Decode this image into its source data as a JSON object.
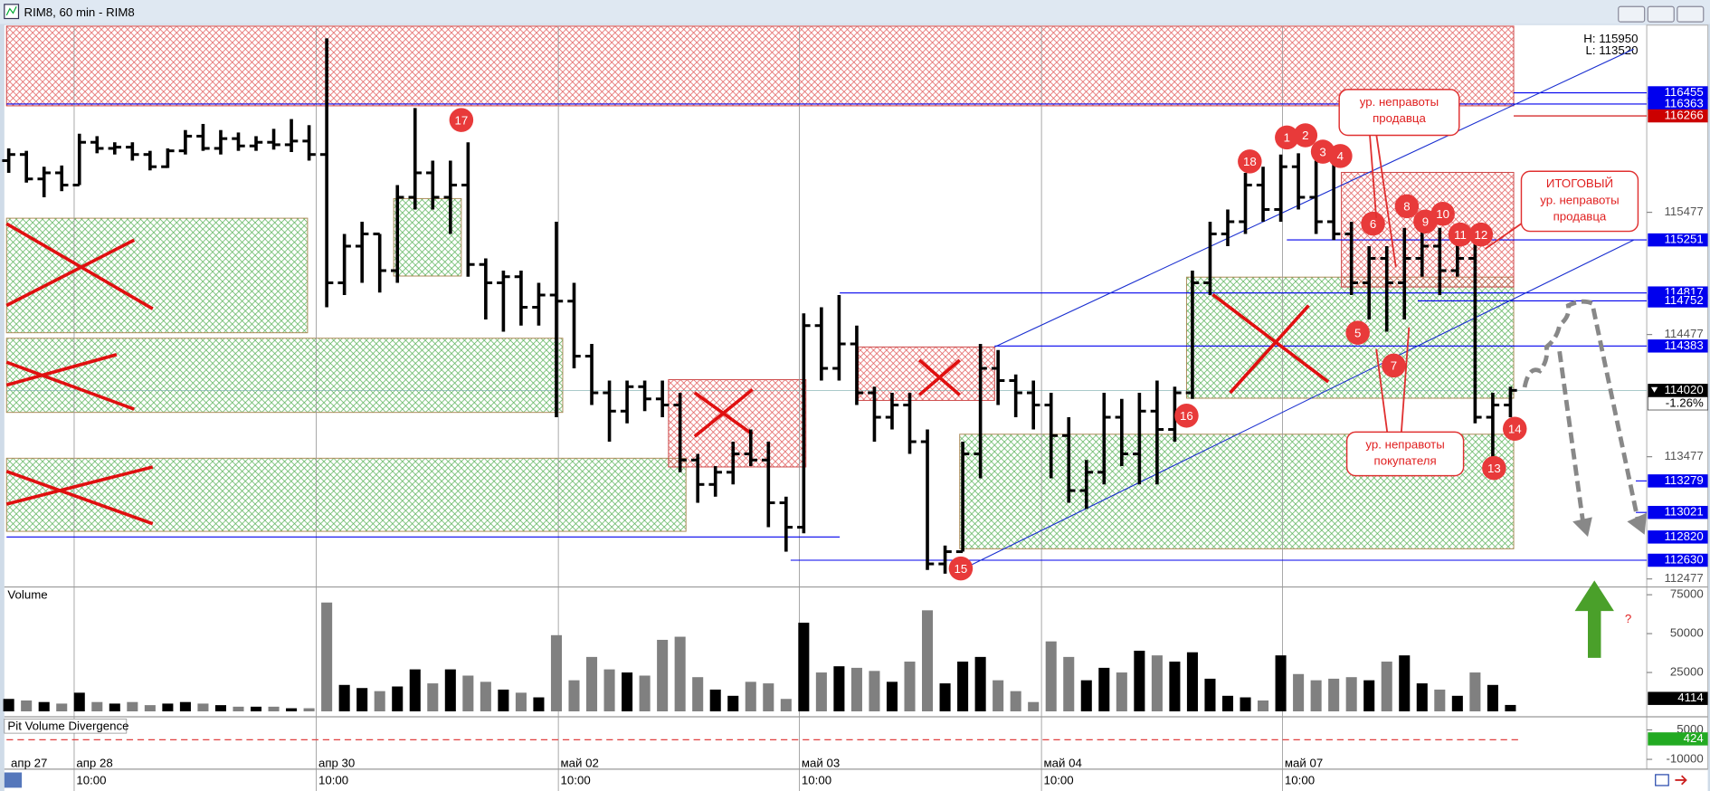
{
  "window_title": "RIM8, 60 min - RIM8",
  "chart_data": {
    "type": "ohlc",
    "bars": [
      [
        115900,
        116000,
        115800,
        115950
      ],
      [
        115950,
        115980,
        115720,
        115750
      ],
      [
        115750,
        115850,
        115600,
        115800
      ],
      [
        115800,
        115860,
        115650,
        115700
      ],
      [
        115700,
        116120,
        115700,
        116050
      ],
      [
        116050,
        116100,
        115960,
        116000
      ],
      [
        116000,
        116050,
        115950,
        116010
      ],
      [
        116010,
        116050,
        115900,
        115950
      ],
      [
        115950,
        115980,
        115820,
        115850
      ],
      [
        115850,
        116000,
        115840,
        115980
      ],
      [
        115980,
        116150,
        115950,
        116100
      ],
      [
        116100,
        116200,
        115980,
        116000
      ],
      [
        116000,
        116150,
        115950,
        116080
      ],
      [
        116080,
        116130,
        115980,
        116020
      ],
      [
        116020,
        116100,
        115980,
        116050
      ],
      [
        116050,
        116160,
        115990,
        116030
      ],
      [
        116030,
        116240,
        115970,
        116060
      ],
      [
        116060,
        116190,
        115900,
        115950
      ],
      [
        115950,
        116900,
        114700,
        114900
      ],
      [
        114900,
        115300,
        114800,
        115200
      ],
      [
        115200,
        115400,
        114900,
        115300
      ],
      [
        115300,
        115300,
        114820,
        115000
      ],
      [
        115000,
        115700,
        114900,
        115600
      ],
      [
        115600,
        116330,
        115500,
        115800
      ],
      [
        115800,
        115900,
        115500,
        115600
      ],
      [
        115600,
        115900,
        115300,
        115700
      ],
      [
        115700,
        116050,
        114950,
        115050
      ],
      [
        115050,
        115100,
        114600,
        114900
      ],
      [
        114900,
        115000,
        114500,
        114950
      ],
      [
        114950,
        115000,
        114550,
        114700
      ],
      [
        114700,
        114900,
        114550,
        114800
      ],
      [
        114800,
        115400,
        113800,
        114750
      ],
      [
        114750,
        114900,
        114200,
        114300
      ],
      [
        114300,
        114400,
        113900,
        114000
      ],
      [
        114000,
        114100,
        113600,
        113850
      ],
      [
        113850,
        114100,
        113750,
        114050
      ],
      [
        114050,
        114100,
        113850,
        113950
      ],
      [
        113950,
        114100,
        113800,
        113900
      ],
      [
        113900,
        114000,
        113350,
        113450
      ],
      [
        113450,
        113500,
        113100,
        113250
      ],
      [
        113250,
        113400,
        113150,
        113350
      ],
      [
        113350,
        113600,
        113250,
        113500
      ],
      [
        113500,
        113700,
        113400,
        113450
      ],
      [
        113450,
        113600,
        112900,
        113100
      ],
      [
        113100,
        113150,
        112700,
        112900
      ],
      [
        112900,
        114650,
        112850,
        114550
      ],
      [
        114550,
        114700,
        114100,
        114200
      ],
      [
        114200,
        114800,
        114100,
        114400
      ],
      [
        114400,
        114550,
        113900,
        114000
      ],
      [
        114000,
        114050,
        113600,
        113800
      ],
      [
        113800,
        114000,
        113700,
        113900
      ],
      [
        113900,
        114000,
        113500,
        113600
      ],
      [
        113600,
        113700,
        112550,
        112600
      ],
      [
        112600,
        112750,
        112520,
        112700
      ],
      [
        112700,
        113600,
        112700,
        113500
      ],
      [
        113500,
        114400,
        113300,
        114200
      ],
      [
        114200,
        114350,
        113900,
        114100
      ],
      [
        114100,
        114150,
        113800,
        114000
      ],
      [
        114000,
        114100,
        113700,
        113900
      ],
      [
        113900,
        114000,
        113300,
        113650
      ],
      [
        113650,
        113800,
        113100,
        113200
      ],
      [
        113200,
        113450,
        113050,
        113350
      ],
      [
        113350,
        114000,
        113250,
        113800
      ],
      [
        113800,
        113950,
        113400,
        113500
      ],
      [
        113500,
        114000,
        113250,
        113850
      ],
      [
        113850,
        114100,
        113250,
        113700
      ],
      [
        113700,
        114050,
        113600,
        114000
      ],
      [
        114000,
        115000,
        113950,
        114900
      ],
      [
        114900,
        115400,
        114800,
        115300
      ],
      [
        115300,
        115500,
        115200,
        115400
      ],
      [
        115400,
        115800,
        115300,
        115700
      ],
      [
        115700,
        115850,
        115400,
        115500
      ],
      [
        115500,
        115950,
        115400,
        115850
      ],
      [
        115850,
        115960,
        115500,
        115600
      ],
      [
        115600,
        115900,
        115300,
        115400
      ],
      [
        115400,
        115900,
        115250,
        115300
      ],
      [
        115300,
        115400,
        114800,
        114900
      ],
      [
        114900,
        115200,
        114600,
        115100
      ],
      [
        115100,
        115200,
        114500,
        114900
      ],
      [
        114900,
        115350,
        114600,
        115100
      ],
      [
        115100,
        115450,
        114950,
        115200
      ],
      [
        115200,
        115350,
        114800,
        115000
      ],
      [
        115000,
        115300,
        114950,
        115100
      ],
      [
        115100,
        115250,
        113750,
        113800
      ],
      [
        113800,
        114000,
        113450,
        113900
      ],
      [
        113900,
        114050,
        113800,
        114020
      ]
    ],
    "color": "#000000",
    "ylim": [
      112420,
      117000
    ],
    "yticks": [
      112477,
      113477,
      114477,
      115477
    ],
    "high_label": "H: 115950",
    "low_label": "L: 113520",
    "levels": [
      {
        "value": 116455,
        "color": "#0000ee"
      },
      {
        "value": 116363,
        "color": "#0000ee"
      },
      {
        "value": 116266,
        "color": "#cc0000"
      },
      {
        "value": 115251,
        "color": "#0000ee"
      },
      {
        "value": 114817,
        "color": "#0000ee"
      },
      {
        "value": 114752,
        "color": "#0000ee"
      },
      {
        "value": 114383,
        "color": "#0000ee"
      },
      {
        "value": 114020,
        "color": "#000000"
      },
      {
        "value": 113279,
        "color": "#0000ee"
      },
      {
        "value": 113021,
        "color": "#0000ee"
      },
      {
        "value": 112820,
        "color": "#0000ee"
      },
      {
        "value": 112630,
        "color": "#0000ee"
      }
    ],
    "change": "-1.26%",
    "volume": {
      "title": "Volume",
      "values": [
        8000,
        7000,
        6000,
        5000,
        12000,
        6000,
        5000,
        6000,
        4000,
        5000,
        6000,
        5000,
        4000,
        3000,
        3000,
        3000,
        2000,
        2000,
        70000,
        17000,
        15000,
        13000,
        16000,
        27000,
        18000,
        27000,
        23000,
        19000,
        14000,
        12000,
        9000,
        49000,
        20000,
        35000,
        27000,
        25000,
        23000,
        46000,
        48000,
        22000,
        14000,
        10000,
        19000,
        18000,
        8000,
        57000,
        25000,
        29000,
        28000,
        26000,
        19000,
        32000,
        65000,
        18000,
        32000,
        35000,
        20000,
        13000,
        6000,
        45000,
        35000,
        20000,
        28000,
        25000,
        39000,
        36000,
        32000,
        38000,
        21000,
        10000,
        9000,
        7000,
        36000,
        24000,
        20000,
        21000,
        22000,
        20000,
        32000,
        36000,
        18000,
        14000,
        10000,
        25000,
        17000,
        4114
      ],
      "up_color": "#000000",
      "down_color": "#808080",
      "ylim": [
        0,
        80000
      ],
      "yticks": [
        25000,
        50000,
        75000
      ]
    },
    "divergence": {
      "title": "Pit Volume Divergence",
      "ylim": [
        -15000,
        10000
      ],
      "yticks": [
        5000,
        -10000
      ],
      "last": 424
    },
    "x_axis": [
      {
        "date": "апр 27"
      },
      {
        "date": "апр 28",
        "time": "10:00"
      },
      {
        "date": "апр 30",
        "time": "10:00"
      },
      {
        "date": "май 02",
        "time": "10:00"
      },
      {
        "date": "май 03",
        "time": "10:00"
      },
      {
        "date": "май 04",
        "time": "10:00"
      },
      {
        "date": "май 07",
        "time": "10:00"
      }
    ],
    "markers": [
      1,
      2,
      3,
      4,
      5,
      6,
      7,
      8,
      9,
      10,
      11,
      12,
      13,
      14,
      15,
      16,
      17,
      18
    ],
    "callouts": [
      {
        "lines": [
          "ур. неправоты",
          "продавца"
        ]
      },
      {
        "lines": [
          "ИТОГОВЫЙ",
          "ур. неправоты",
          "продавца"
        ]
      },
      {
        "lines": [
          "ур. неправоты",
          "покупателя"
        ]
      }
    ],
    "question": "?"
  }
}
